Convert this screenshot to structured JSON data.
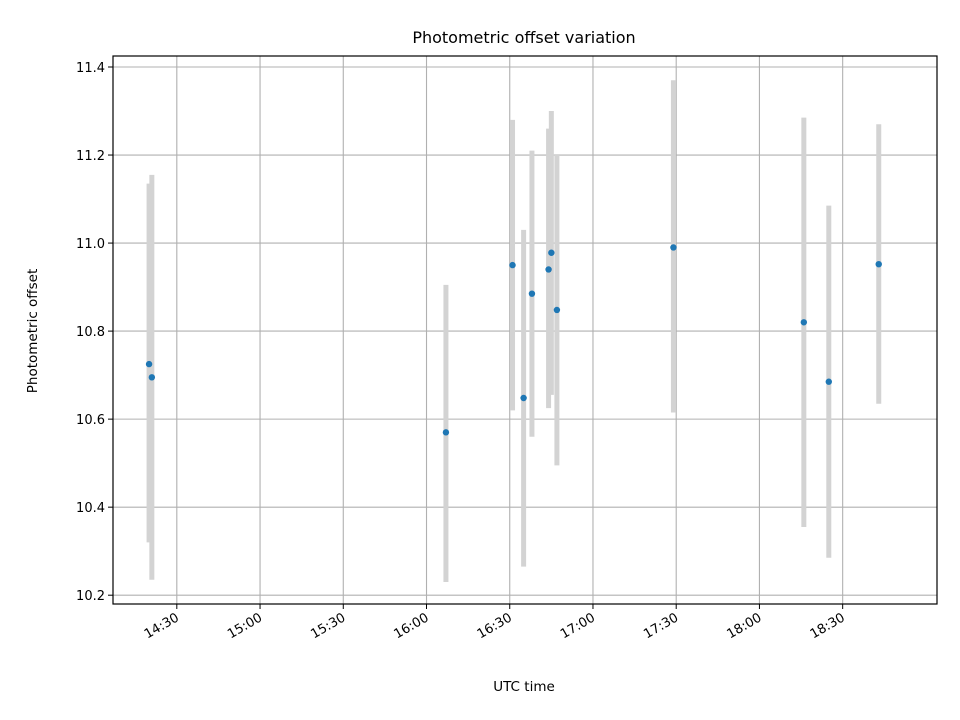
{
  "chart_data": {
    "type": "scatter",
    "title": "Photometric offset variation",
    "xlabel": "UTC time",
    "ylabel": "Photometric offset",
    "x_axis": {
      "kind": "time",
      "range": [
        "14:07",
        "19:04"
      ],
      "ticks": [
        "14:30",
        "15:00",
        "15:30",
        "16:00",
        "16:30",
        "17:00",
        "17:30",
        "18:00",
        "18:30"
      ]
    },
    "y_axis": {
      "range": [
        10.18,
        11.425
      ],
      "ticks": [
        10.2,
        10.4,
        10.6,
        10.8,
        11.0,
        11.2,
        11.4
      ]
    },
    "grid": true,
    "points": [
      {
        "x": "14:20",
        "y": 10.725,
        "yerr_low": 10.32,
        "yerr_high": 11.135
      },
      {
        "x": "14:21",
        "y": 10.695,
        "yerr_low": 10.235,
        "yerr_high": 11.155
      },
      {
        "x": "16:07",
        "y": 10.57,
        "yerr_low": 10.23,
        "yerr_high": 10.905
      },
      {
        "x": "16:31",
        "y": 10.95,
        "yerr_low": 10.62,
        "yerr_high": 11.28
      },
      {
        "x": "16:35",
        "y": 10.648,
        "yerr_low": 10.265,
        "yerr_high": 11.03
      },
      {
        "x": "16:38",
        "y": 10.885,
        "yerr_low": 10.56,
        "yerr_high": 11.21
      },
      {
        "x": "16:44",
        "y": 10.94,
        "yerr_low": 10.625,
        "yerr_high": 11.26
      },
      {
        "x": "16:45",
        "y": 10.978,
        "yerr_low": 10.655,
        "yerr_high": 11.3
      },
      {
        "x": "16:47",
        "y": 10.848,
        "yerr_low": 10.495,
        "yerr_high": 11.2
      },
      {
        "x": "17:29",
        "y": 10.99,
        "yerr_low": 10.615,
        "yerr_high": 11.37
      },
      {
        "x": "18:16",
        "y": 10.82,
        "yerr_low": 10.355,
        "yerr_high": 11.285
      },
      {
        "x": "18:25",
        "y": 10.685,
        "yerr_low": 10.285,
        "yerr_high": 11.085
      },
      {
        "x": "18:43",
        "y": 10.952,
        "yerr_low": 10.635,
        "yerr_high": 11.27
      }
    ],
    "colors": {
      "point": "#1f77b4",
      "errorbar": "#d3d3d3",
      "grid": "#b0b0b0",
      "axis": "#000000"
    }
  }
}
